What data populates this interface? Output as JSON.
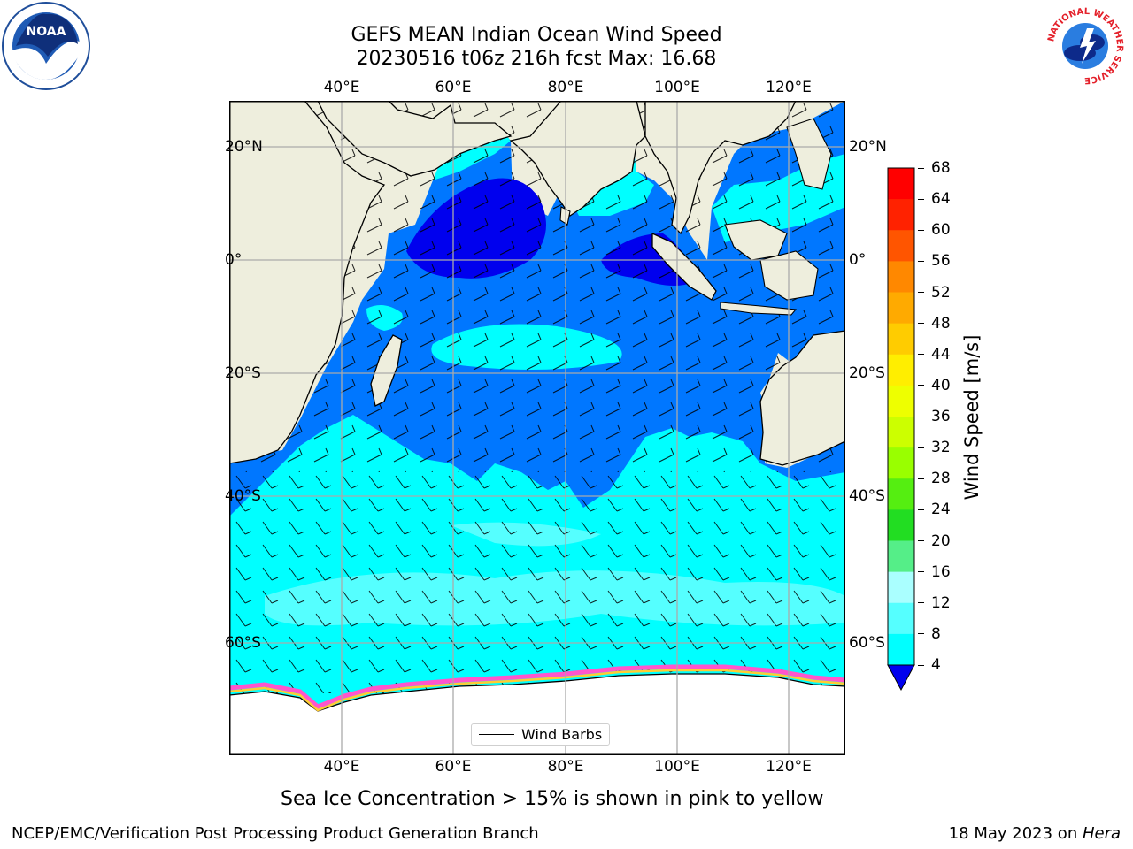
{
  "title": {
    "line1": "GEFS MEAN Indian Ocean Wind Speed",
    "line2": "20230516 t06z 216h fcst   Max: 16.68"
  },
  "logos": {
    "left": "NOAA",
    "right": "NATIONAL WEATHER SERVICE"
  },
  "map": {
    "lon_ticks": [
      "40°E",
      "60°E",
      "80°E",
      "100°E",
      "120°E"
    ],
    "lat_ticks_left": [
      "20°N",
      "0°",
      "20°S",
      "40°S",
      "60°S"
    ],
    "lat_ticks_right": [
      "20°N",
      "0°",
      "20°S",
      "40°S",
      "60°S"
    ],
    "legend_label": "Wind Barbs"
  },
  "colorbar": {
    "label": "Wind Speed [m/s]",
    "ticks": [
      "68",
      "64",
      "60",
      "56",
      "52",
      "48",
      "44",
      "40",
      "36",
      "32",
      "28",
      "24",
      "20",
      "16",
      "12",
      "8",
      "4"
    ],
    "colors": [
      "#ff0000",
      "#ff2200",
      "#ff5500",
      "#ff8800",
      "#ffaa00",
      "#ffcc00",
      "#ffee00",
      "#eeff00",
      "#ccff00",
      "#99ff00",
      "#55ee11",
      "#22dd22",
      "#55ee88",
      "#aaffff",
      "#55ffff",
      "#00ffff",
      "#0077ff"
    ],
    "under_color": "#0000ee"
  },
  "note": "Sea Ice Concentration > 15% is shown in pink to yellow",
  "footer": {
    "left": "NCEP/EMC/Verification Post Processing Product Generation Branch",
    "right_date": "18 May 2023 on ",
    "right_host": "Hera"
  }
}
